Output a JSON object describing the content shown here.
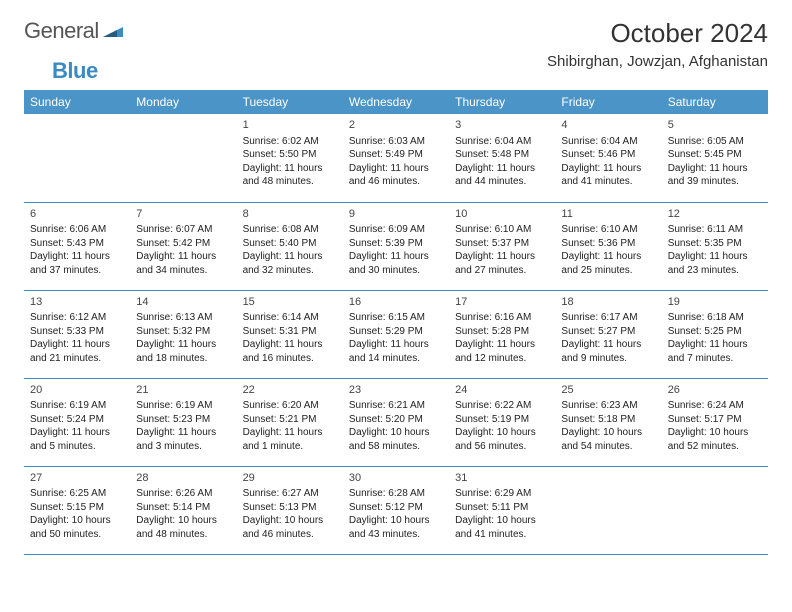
{
  "brand": {
    "part1": "General",
    "part2": "Blue",
    "logo_color": "#3b8ac4",
    "text_color": "#555555"
  },
  "colors": {
    "header_bg": "#4a94c8",
    "header_text": "#ffffff",
    "cell_border": "#3b8ac4",
    "page_bg": "#ffffff",
    "text": "#222222"
  },
  "fonts": {
    "family": "Arial, Helvetica, sans-serif",
    "month_title_size_pt": 20,
    "location_size_pt": 11,
    "dow_size_pt": 9,
    "daynum_size_pt": 8,
    "body_size_pt": 7.5
  },
  "title": {
    "month": "October 2024",
    "location": "Shibirghan, Jowzjan, Afghanistan"
  },
  "days_of_week": [
    "Sunday",
    "Monday",
    "Tuesday",
    "Wednesday",
    "Thursday",
    "Friday",
    "Saturday"
  ],
  "calendar": {
    "first_day_column": 2,
    "days": [
      {
        "n": 1,
        "sunrise": "Sunrise: 6:02 AM",
        "sunset": "Sunset: 5:50 PM",
        "daylight": "Daylight: 11 hours and 48 minutes."
      },
      {
        "n": 2,
        "sunrise": "Sunrise: 6:03 AM",
        "sunset": "Sunset: 5:49 PM",
        "daylight": "Daylight: 11 hours and 46 minutes."
      },
      {
        "n": 3,
        "sunrise": "Sunrise: 6:04 AM",
        "sunset": "Sunset: 5:48 PM",
        "daylight": "Daylight: 11 hours and 44 minutes."
      },
      {
        "n": 4,
        "sunrise": "Sunrise: 6:04 AM",
        "sunset": "Sunset: 5:46 PM",
        "daylight": "Daylight: 11 hours and 41 minutes."
      },
      {
        "n": 5,
        "sunrise": "Sunrise: 6:05 AM",
        "sunset": "Sunset: 5:45 PM",
        "daylight": "Daylight: 11 hours and 39 minutes."
      },
      {
        "n": 6,
        "sunrise": "Sunrise: 6:06 AM",
        "sunset": "Sunset: 5:43 PM",
        "daylight": "Daylight: 11 hours and 37 minutes."
      },
      {
        "n": 7,
        "sunrise": "Sunrise: 6:07 AM",
        "sunset": "Sunset: 5:42 PM",
        "daylight": "Daylight: 11 hours and 34 minutes."
      },
      {
        "n": 8,
        "sunrise": "Sunrise: 6:08 AM",
        "sunset": "Sunset: 5:40 PM",
        "daylight": "Daylight: 11 hours and 32 minutes."
      },
      {
        "n": 9,
        "sunrise": "Sunrise: 6:09 AM",
        "sunset": "Sunset: 5:39 PM",
        "daylight": "Daylight: 11 hours and 30 minutes."
      },
      {
        "n": 10,
        "sunrise": "Sunrise: 6:10 AM",
        "sunset": "Sunset: 5:37 PM",
        "daylight": "Daylight: 11 hours and 27 minutes."
      },
      {
        "n": 11,
        "sunrise": "Sunrise: 6:10 AM",
        "sunset": "Sunset: 5:36 PM",
        "daylight": "Daylight: 11 hours and 25 minutes."
      },
      {
        "n": 12,
        "sunrise": "Sunrise: 6:11 AM",
        "sunset": "Sunset: 5:35 PM",
        "daylight": "Daylight: 11 hours and 23 minutes."
      },
      {
        "n": 13,
        "sunrise": "Sunrise: 6:12 AM",
        "sunset": "Sunset: 5:33 PM",
        "daylight": "Daylight: 11 hours and 21 minutes."
      },
      {
        "n": 14,
        "sunrise": "Sunrise: 6:13 AM",
        "sunset": "Sunset: 5:32 PM",
        "daylight": "Daylight: 11 hours and 18 minutes."
      },
      {
        "n": 15,
        "sunrise": "Sunrise: 6:14 AM",
        "sunset": "Sunset: 5:31 PM",
        "daylight": "Daylight: 11 hours and 16 minutes."
      },
      {
        "n": 16,
        "sunrise": "Sunrise: 6:15 AM",
        "sunset": "Sunset: 5:29 PM",
        "daylight": "Daylight: 11 hours and 14 minutes."
      },
      {
        "n": 17,
        "sunrise": "Sunrise: 6:16 AM",
        "sunset": "Sunset: 5:28 PM",
        "daylight": "Daylight: 11 hours and 12 minutes."
      },
      {
        "n": 18,
        "sunrise": "Sunrise: 6:17 AM",
        "sunset": "Sunset: 5:27 PM",
        "daylight": "Daylight: 11 hours and 9 minutes."
      },
      {
        "n": 19,
        "sunrise": "Sunrise: 6:18 AM",
        "sunset": "Sunset: 5:25 PM",
        "daylight": "Daylight: 11 hours and 7 minutes."
      },
      {
        "n": 20,
        "sunrise": "Sunrise: 6:19 AM",
        "sunset": "Sunset: 5:24 PM",
        "daylight": "Daylight: 11 hours and 5 minutes."
      },
      {
        "n": 21,
        "sunrise": "Sunrise: 6:19 AM",
        "sunset": "Sunset: 5:23 PM",
        "daylight": "Daylight: 11 hours and 3 minutes."
      },
      {
        "n": 22,
        "sunrise": "Sunrise: 6:20 AM",
        "sunset": "Sunset: 5:21 PM",
        "daylight": "Daylight: 11 hours and 1 minute."
      },
      {
        "n": 23,
        "sunrise": "Sunrise: 6:21 AM",
        "sunset": "Sunset: 5:20 PM",
        "daylight": "Daylight: 10 hours and 58 minutes."
      },
      {
        "n": 24,
        "sunrise": "Sunrise: 6:22 AM",
        "sunset": "Sunset: 5:19 PM",
        "daylight": "Daylight: 10 hours and 56 minutes."
      },
      {
        "n": 25,
        "sunrise": "Sunrise: 6:23 AM",
        "sunset": "Sunset: 5:18 PM",
        "daylight": "Daylight: 10 hours and 54 minutes."
      },
      {
        "n": 26,
        "sunrise": "Sunrise: 6:24 AM",
        "sunset": "Sunset: 5:17 PM",
        "daylight": "Daylight: 10 hours and 52 minutes."
      },
      {
        "n": 27,
        "sunrise": "Sunrise: 6:25 AM",
        "sunset": "Sunset: 5:15 PM",
        "daylight": "Daylight: 10 hours and 50 minutes."
      },
      {
        "n": 28,
        "sunrise": "Sunrise: 6:26 AM",
        "sunset": "Sunset: 5:14 PM",
        "daylight": "Daylight: 10 hours and 48 minutes."
      },
      {
        "n": 29,
        "sunrise": "Sunrise: 6:27 AM",
        "sunset": "Sunset: 5:13 PM",
        "daylight": "Daylight: 10 hours and 46 minutes."
      },
      {
        "n": 30,
        "sunrise": "Sunrise: 6:28 AM",
        "sunset": "Sunset: 5:12 PM",
        "daylight": "Daylight: 10 hours and 43 minutes."
      },
      {
        "n": 31,
        "sunrise": "Sunrise: 6:29 AM",
        "sunset": "Sunset: 5:11 PM",
        "daylight": "Daylight: 10 hours and 41 minutes."
      }
    ]
  }
}
